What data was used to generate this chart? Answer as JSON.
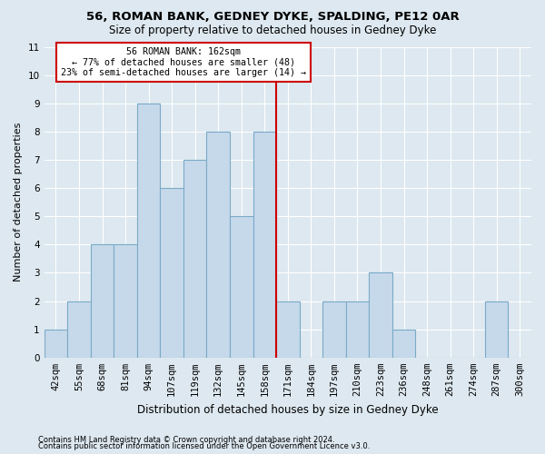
{
  "title1": "56, ROMAN BANK, GEDNEY DYKE, SPALDING, PE12 0AR",
  "title2": "Size of property relative to detached houses in Gedney Dyke",
  "xlabel": "Distribution of detached houses by size in Gedney Dyke",
  "ylabel": "Number of detached properties",
  "footer1": "Contains HM Land Registry data © Crown copyright and database right 2024.",
  "footer2": "Contains public sector information licensed under the Open Government Licence v3.0.",
  "categories": [
    "42sqm",
    "55sqm",
    "68sqm",
    "81sqm",
    "94sqm",
    "107sqm",
    "119sqm",
    "132sqm",
    "145sqm",
    "158sqm",
    "171sqm",
    "184sqm",
    "197sqm",
    "210sqm",
    "223sqm",
    "236sqm",
    "248sqm",
    "261sqm",
    "274sqm",
    "287sqm",
    "300sqm"
  ],
  "values": [
    1,
    2,
    4,
    4,
    9,
    6,
    7,
    8,
    5,
    8,
    2,
    0,
    2,
    2,
    3,
    1,
    0,
    0,
    0,
    2,
    0
  ],
  "bar_color": "#c6d9ea",
  "bar_edge_color": "#7aaac8",
  "reference_line_idx": 9.5,
  "reference_line_color": "#cc0000",
  "annotation_text": "56 ROMAN BANK: 162sqm\n← 77% of detached houses are smaller (48)\n23% of semi-detached houses are larger (14) →",
  "annotation_box_color": "#cc0000",
  "ylim": [
    0,
    11
  ],
  "background_color": "#dde8f0",
  "grid_color": "#ffffff",
  "title1_fontsize": 9.5,
  "title2_fontsize": 8.5,
  "ylabel_fontsize": 8,
  "xlabel_fontsize": 8.5,
  "tick_fontsize": 7.5,
  "footer_fontsize": 6
}
